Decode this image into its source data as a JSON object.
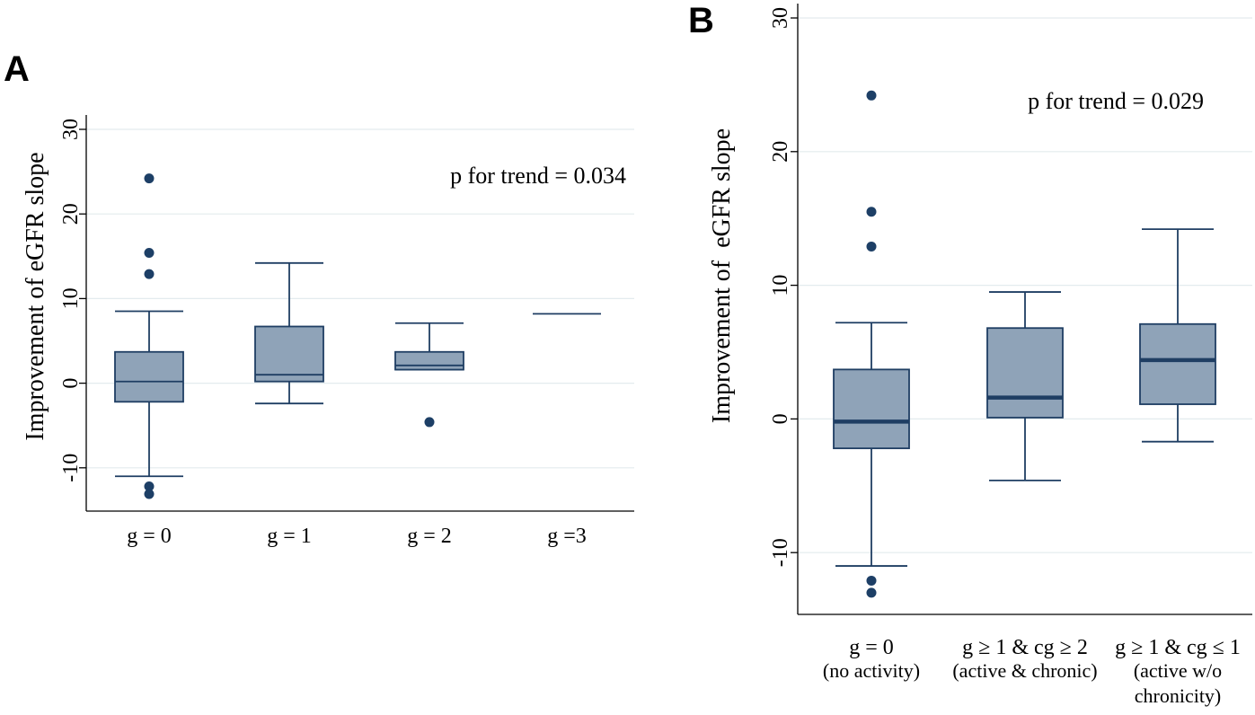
{
  "chart_data": [
    {
      "panel": "A",
      "type": "box",
      "title": "",
      "xlabel": "",
      "ylabel": "Improvement of eGFR slope",
      "ylim": [
        -15,
        31
      ],
      "yticks": [
        -10,
        0,
        10,
        20,
        30
      ],
      "grid": true,
      "annotation": "p for trend = 0.034",
      "categories": [
        {
          "label": "g = 0",
          "q1": -2.2,
          "median": 0.2,
          "q3": 3.7,
          "whisker_low": -11,
          "whisker_high": 8.5,
          "outliers": [
            24.2,
            15.4,
            12.9,
            -12.2,
            -13.1
          ]
        },
        {
          "label": "g = 1",
          "q1": 0.2,
          "median": 1.0,
          "q3": 6.7,
          "whisker_low": -2.4,
          "whisker_high": 14.2,
          "outliers": []
        },
        {
          "label": "g = 2",
          "q1": 1.6,
          "median": 2.1,
          "q3": 3.7,
          "whisker_low": 1.6,
          "whisker_high": 7.1,
          "outliers": [
            -4.6
          ]
        },
        {
          "label": "g =3",
          "q1": 8.2,
          "median": 8.2,
          "q3": 8.2,
          "whisker_low": 8.2,
          "whisker_high": 8.2,
          "outliers": []
        }
      ]
    },
    {
      "panel": "B",
      "type": "box",
      "title": "",
      "xlabel": "",
      "ylabel": "Improvement of  eGFR slope",
      "ylim": [
        -14.5,
        31
      ],
      "yticks": [
        -10,
        0,
        10,
        20,
        30
      ],
      "grid": true,
      "annotation": "p for trend = 0.029",
      "categories": [
        {
          "label": "g = 0",
          "sublabel": [
            "(no activity)"
          ],
          "q1": -2.2,
          "median": -0.2,
          "q3": 3.7,
          "whisker_low": -11,
          "whisker_high": 7.2,
          "outliers": [
            24.2,
            15.5,
            12.9,
            -12.1,
            -13.0
          ]
        },
        {
          "label": "g ≥ 1 & cg ≥ 2",
          "sublabel": [
            "(active & chronic)"
          ],
          "q1": 0.1,
          "median": 1.6,
          "q3": 6.8,
          "whisker_low": -4.6,
          "whisker_high": 9.5,
          "outliers": []
        },
        {
          "label": "g ≥ 1 & cg ≤ 1",
          "sublabel": [
            "(active w/o",
            "chronicity)"
          ],
          "q1": 1.1,
          "median": 4.4,
          "q3": 7.1,
          "whisker_low": -1.7,
          "whisker_high": 14.2,
          "outliers": []
        }
      ]
    }
  ],
  "colors": {
    "box_fill": "#8fa3b8",
    "box_stroke": "#1f3e63",
    "outlier": "#1d3f66",
    "grid": "#e3ebee"
  }
}
